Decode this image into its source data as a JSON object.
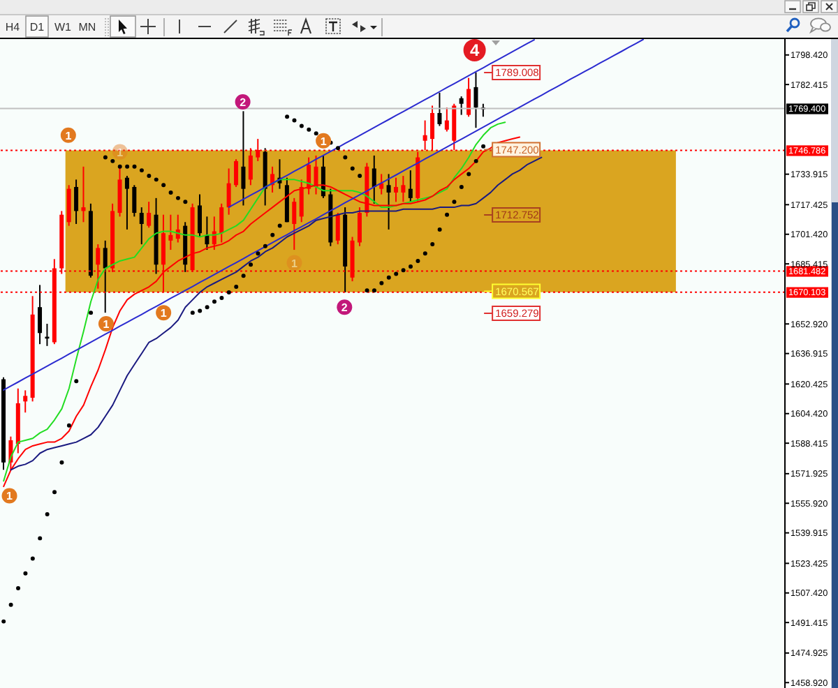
{
  "chart_data": {
    "type": "candlestick",
    "categories": [
      null,
      null,
      null,
      null,
      null,
      null,
      null,
      null,
      null,
      null,
      null,
      null,
      null,
      null,
      null,
      null,
      null,
      null,
      null,
      null,
      null,
      null,
      null,
      null,
      null,
      null,
      null,
      null,
      null,
      null,
      null,
      null,
      null,
      null,
      null,
      null,
      null,
      null,
      null,
      null,
      null,
      null,
      null,
      null,
      null,
      null,
      null,
      null,
      null,
      null,
      null,
      null,
      null,
      null,
      null,
      null,
      null,
      null,
      null,
      null,
      null,
      null,
      null,
      null,
      null,
      null,
      null,
      null,
      null,
      null,
      null,
      null,
      null,
      null,
      null,
      null,
      null,
      null,
      null,
      null,
      null,
      null,
      null,
      null,
      null,
      null,
      null,
      null,
      null,
      null,
      null,
      null,
      null,
      null,
      null,
      null,
      null,
      null,
      null,
      null,
      null,
      null,
      null,
      null,
      null,
      null,
      null,
      null
    ],
    "ohlc": [
      [
        1623,
        1624,
        1574,
        1578
      ],
      [
        1578,
        1592,
        1574,
        1590
      ],
      [
        1588,
        1618,
        1583,
        1610
      ],
      [
        1611,
        1617,
        1605,
        1614
      ],
      [
        1613,
        1668,
        1611,
        1658
      ],
      [
        1662,
        1674,
        1642,
        1648
      ],
      [
        1646,
        1653,
        1641,
        1645
      ],
      [
        1643,
        1688,
        1642,
        1683
      ],
      [
        1683,
        1714,
        1680,
        1712
      ],
      [
        1708,
        1728,
        1706,
        1726
      ],
      [
        1727,
        1731,
        1707,
        1714
      ],
      [
        1714,
        1738,
        1708,
        1716
      ],
      [
        1714,
        1718,
        1678,
        1679
      ],
      [
        1685,
        1696,
        1672,
        1694
      ],
      [
        1694,
        1698,
        1659,
        1683
      ],
      [
        1683,
        1718,
        1681,
        1714
      ],
      [
        1713,
        1738,
        1711,
        1731
      ],
      [
        1732,
        1733,
        1704,
        1726
      ],
      [
        1727,
        1728,
        1711,
        1713
      ],
      [
        1713,
        1716,
        1696,
        1707
      ],
      [
        1706,
        1719,
        1705,
        1713
      ],
      [
        1712,
        1721,
        1680,
        1685
      ],
      [
        1685,
        1712,
        1670,
        1702
      ],
      [
        1698,
        1712,
        1693,
        1701
      ],
      [
        1699,
        1712,
        1697,
        1704
      ],
      [
        1706,
        1708,
        1681,
        1685
      ],
      [
        1682,
        1718,
        1681,
        1716
      ],
      [
        1717,
        1723,
        1700,
        1702
      ],
      [
        1701,
        1711,
        1693,
        1696
      ],
      [
        1696,
        1711,
        1693,
        1703
      ],
      [
        1702,
        1718,
        1697,
        1716
      ],
      [
        1716,
        1737,
        1712,
        1729
      ],
      [
        1728,
        1742,
        1727,
        1741
      ],
      [
        1738,
        1768,
        1717,
        1726
      ],
      [
        1731,
        1748,
        1728,
        1744
      ],
      [
        1743,
        1753,
        1741,
        1747
      ],
      [
        1746,
        1748,
        1717,
        1726
      ],
      [
        1728,
        1738,
        1724,
        1734
      ],
      [
        1732,
        1742,
        1726,
        1729
      ],
      [
        1728,
        1732,
        1708,
        1708
      ],
      [
        1707,
        1721,
        1693,
        1719
      ],
      [
        1711,
        1731,
        1708,
        1727
      ],
      [
        1726,
        1743,
        1723,
        1739
      ],
      [
        1727,
        1744,
        1723,
        1738
      ],
      [
        1738,
        1744,
        1721,
        1722
      ],
      [
        1723,
        1726,
        1695,
        1697
      ],
      [
        1698,
        1713,
        1696,
        1712
      ],
      [
        1712,
        1716,
        1670,
        1684
      ],
      [
        1678,
        1700,
        1676,
        1698
      ],
      [
        1697,
        1716,
        1695,
        1713
      ],
      [
        1713,
        1740,
        1711,
        1738
      ],
      [
        1737,
        1744,
        1718,
        1727
      ],
      [
        1726,
        1734,
        1723,
        1729
      ],
      [
        1728,
        1734,
        1704,
        1724
      ],
      [
        1724,
        1732,
        1719,
        1727
      ],
      [
        1724,
        1733,
        1719,
        1728
      ],
      [
        1726,
        1736,
        1719,
        1721
      ],
      [
        1721,
        1746,
        1719,
        1743
      ],
      [
        1752,
        1763,
        1747,
        1755
      ],
      [
        1753,
        1771,
        1747,
        1767
      ],
      [
        1767,
        1778,
        1760,
        1761
      ],
      [
        1758,
        1770,
        1757,
        1763
      ],
      [
        1752,
        1772,
        1747,
        1771
      ],
      [
        1775,
        1776,
        1766,
        1772
      ],
      [
        1766,
        1786,
        1765,
        1780
      ],
      [
        1781,
        1789,
        1759,
        1770
      ],
      [
        1770,
        1772,
        1765,
        1769
      ],
      null,
      null,
      null,
      null,
      null,
      null,
      null,
      null,
      null,
      null,
      null,
      null,
      null,
      null,
      null,
      null,
      null,
      null,
      null,
      null,
      null,
      null,
      null,
      null,
      null,
      null,
      null,
      null,
      null,
      null,
      null,
      null,
      null,
      null,
      null,
      null,
      null,
      null,
      null,
      null,
      null
    ],
    "colors": [
      "#000000",
      "#ff0000",
      "#ff0000",
      "#ff0000",
      "#ff0000",
      "#000000",
      "#000000",
      "#ff0000",
      "#ff0000",
      "#ff0000",
      "#000000",
      "#ff0000",
      "#000000",
      "#ff0000",
      "#000000",
      "#ff0000",
      "#ff0000",
      "#000000",
      "#000000",
      "#000000",
      "#ff0000",
      "#000000",
      "#ff0000",
      "#ff0000",
      "#ff0000",
      "#000000",
      "#ff0000",
      "#000000",
      "#000000",
      "#ff0000",
      "#ff0000",
      "#ff0000",
      "#ff0000",
      "#000000",
      "#ff0000",
      "#ff0000",
      "#000000",
      "#ff0000",
      "#000000",
      "#000000",
      "#ff0000",
      "#ff0000",
      "#ff0000",
      "#ff0000",
      "#000000",
      "#000000",
      "#ff0000",
      "#000000",
      "#ff0000",
      "#ff0000",
      "#ff0000",
      "#000000",
      "#ff0000",
      "#000000",
      "#ff0000",
      "#ff0000",
      "#000000",
      "#ff0000",
      "#ff0000",
      "#ff0000",
      "#000000",
      "#ff0000",
      "#ff0000",
      "#000000",
      "#ff0000",
      "#000000",
      "#000000",
      null,
      null,
      null,
      null,
      null,
      null,
      null,
      null,
      null,
      null,
      null,
      null,
      null,
      null,
      null,
      null,
      null,
      null,
      null,
      null,
      null,
      null,
      null,
      null,
      null,
      null,
      null,
      null,
      null,
      null,
      null,
      null,
      null,
      null,
      null,
      null,
      null,
      null,
      null,
      null,
      null
    ],
    "series": [
      {
        "type": "line",
        "color": "#22dd22",
        "values": [
          1568,
          1581,
          1589,
          1590,
          1591,
          1594,
          1596,
          1601,
          1607,
          1618,
          1634,
          1649,
          1665,
          1677,
          1683,
          1685,
          1687,
          1688,
          1689,
          1694,
          1699,
          1702,
          1703,
          1703,
          1702,
          1701,
          1701,
          1700,
          1701,
          1701,
          1702,
          1704,
          1706,
          1709,
          1715,
          1721,
          1727,
          1729,
          1731,
          1731,
          1731,
          1730,
          1729,
          1727,
          1725,
          1725,
          1725,
          1725,
          1725,
          1724,
          1722,
          1719,
          1716,
          1716,
          1717,
          1718,
          1719,
          1720,
          1721,
          1722,
          1724,
          1726,
          1732,
          1737,
          1743,
          1750,
          1755,
          1759,
          1761,
          1762,
          null,
          null,
          null,
          null,
          null,
          null,
          null,
          null,
          null,
          null,
          null,
          null,
          null,
          null,
          null,
          null,
          null,
          null,
          null,
          null,
          null,
          null,
          null,
          null,
          null,
          null,
          null,
          null,
          null,
          null,
          null,
          null,
          null,
          null,
          null,
          null,
          null,
          null
        ]
      },
      {
        "type": "line",
        "color": "#ff0000",
        "values": [
          1565,
          1574,
          1580,
          1585,
          1587,
          1588,
          1589,
          1589,
          1591,
          1595,
          1603,
          1609,
          1619,
          1628,
          1639,
          1651,
          1660,
          1666,
          1669,
          1671,
          1673,
          1676,
          1681,
          1684,
          1687,
          1689,
          1691,
          1692,
          1694,
          1695,
          1696,
          1698,
          1701,
          1703,
          1707,
          1710,
          1713,
          1716,
          1719,
          1722,
          1725,
          1726,
          1727,
          1728,
          1728,
          1727,
          1725,
          1723,
          1721,
          1719,
          1718,
          1717,
          1717,
          1717,
          1717,
          1718,
          1718,
          1719,
          1720,
          1722,
          1725,
          1727,
          1731,
          1734,
          1737,
          1741,
          1746,
          1748,
          1751,
          1752,
          1753,
          1754,
          null,
          null,
          null,
          null,
          null,
          null,
          null,
          null,
          null,
          null,
          null,
          null,
          null,
          null,
          null,
          null,
          null,
          null,
          null,
          null,
          null,
          null,
          null,
          null,
          null,
          null,
          null,
          null,
          null,
          null,
          null,
          null,
          null,
          null,
          null,
          null
        ]
      },
      {
        "type": "line",
        "color": "#1a1a80",
        "values": [
          null,
          1574,
          1576,
          1577,
          1579,
          1583,
          1585,
          1586,
          1587,
          1588,
          1589,
          1591,
          1593,
          1597,
          1603,
          1609,
          1617,
          1625,
          1631,
          1637,
          1643,
          1645,
          1648,
          1651,
          1655,
          1662,
          1666,
          1670,
          1673,
          1675,
          1677,
          1679,
          1681,
          1684,
          1687,
          1689,
          1692,
          1694,
          1697,
          1700,
          1702,
          1704,
          1706,
          1709,
          1710,
          1711,
          1712,
          1713,
          1713,
          1714,
          1714,
          1714,
          1714,
          1714,
          1714,
          1715,
          1715,
          1715,
          1715,
          1715,
          1716,
          1716,
          1716,
          1717,
          1717,
          1718,
          1721,
          1724,
          1728,
          1731,
          1734,
          1736,
          1739,
          1741,
          1743,
          null,
          null,
          null,
          null,
          null,
          null,
          null,
          null,
          null,
          null,
          null,
          null,
          null,
          null,
          null,
          null,
          null,
          null,
          null,
          null,
          null,
          null,
          null,
          null,
          null,
          null,
          null,
          null,
          null,
          null,
          null,
          null,
          null
        ]
      },
      {
        "type": "line",
        "color": "#2b2bd0",
        "values": [
          1617.2,
          1619.4,
          1621.5,
          1623.7,
          1625.8,
          1628.0,
          1630.1,
          1632.3,
          1634.4,
          1636.6,
          1638.7,
          1640.9,
          1643.1,
          1645.2,
          1647.4,
          1649.5,
          1651.7,
          1653.8,
          1656.0,
          1658.1,
          1660.3,
          1662.4,
          1664.6,
          1666.8,
          1668.9,
          1671.1,
          1673.2,
          1675.4,
          1677.5,
          1679.7,
          1681.8,
          1684.0,
          1686.1,
          1688.3,
          1690.5,
          1692.6,
          1694.8,
          1696.9,
          1699.1,
          1701.2,
          1703.4,
          1705.5,
          1707.7,
          1709.8,
          1712.0,
          1714.2,
          1716.3,
          1718.5,
          1720.6,
          1722.8,
          1724.9,
          1727.1,
          1729.2,
          1731.4,
          1733.5,
          1735.7,
          1737.9,
          1740.0,
          1742.2,
          1744.3,
          1746.5,
          1748.6,
          1750.8,
          1752.9,
          1755.1,
          1757.2,
          1759.4,
          1761.6,
          1763.7,
          1765.9,
          1768.0,
          1770.2,
          1772.3,
          1774.5,
          1776.6,
          1778.8,
          1780.9,
          1783.1,
          1785.3,
          1787.4,
          1789.6,
          1791.7,
          1793.9,
          1796.0,
          1798.2,
          1800.3,
          1802.5,
          1804.6,
          1806.8,
          null,
          null,
          null,
          null,
          null,
          null,
          null,
          null,
          null,
          null,
          null,
          null,
          null,
          null,
          null,
          null,
          null,
          null,
          null
        ]
      },
      {
        "type": "line",
        "color": "#2b2bd0",
        "values": [
          null,
          null,
          null,
          null,
          null,
          null,
          null,
          null,
          null,
          null,
          null,
          null,
          null,
          null,
          null,
          null,
          null,
          null,
          null,
          null,
          null,
          null,
          null,
          null,
          null,
          null,
          null,
          null,
          null,
          null,
          null,
          1716.1,
          1718.3,
          1720.4,
          1722.6,
          1724.7,
          1726.9,
          1729.0,
          1731.2,
          1733.3,
          1735.5,
          1737.6,
          1739.8,
          1742.0,
          1744.1,
          1746.3,
          1748.4,
          1750.6,
          1752.7,
          1754.9,
          1757.0,
          1759.2,
          1761.4,
          1763.5,
          1765.7,
          1767.8,
          1770.0,
          1772.1,
          1774.3,
          1776.4,
          1778.6,
          1780.8,
          1782.9,
          1785.1,
          1787.2,
          1789.4,
          1791.5,
          1793.7,
          1795.8,
          1798.0,
          1800.2,
          1802.3,
          1804.5,
          1806.6,
          null,
          null,
          null,
          null,
          null,
          null,
          null,
          null,
          null,
          null,
          null,
          null,
          null,
          null,
          null,
          null,
          null,
          null,
          null,
          null,
          null,
          null,
          null,
          null,
          null,
          null,
          null,
          null,
          null,
          null,
          null,
          null,
          null,
          null
        ]
      },
      {
        "type": "scatter",
        "color": "#000000",
        "marker": "circle",
        "values": [
          1492,
          1501,
          1510,
          1518,
          1526,
          1537,
          1550,
          1562,
          1578,
          1598,
          1622,
          null,
          1659,
          null,
          1743,
          1741,
          1738,
          1738,
          1738,
          1736,
          1733,
          1731,
          1728,
          1724,
          1721,
          1719,
          1659,
          1660,
          1662,
          1665,
          1667,
          1670,
          1673,
          1679,
          1685,
          1691,
          1695,
          1701,
          1706,
          1765,
          1763,
          1760,
          1758,
          1756,
          null,
          1751,
          1748,
          1743,
          1737,
          1733,
          1671,
          1671,
          1675,
          1678,
          1680,
          1682,
          1684,
          1687,
          1691,
          1696,
          1704,
          1712,
          1719,
          1727,
          1734,
          1741,
          1749,
          null,
          null,
          null,
          null,
          null,
          null,
          null,
          null,
          null,
          null,
          null,
          null,
          null,
          null,
          null,
          null,
          null,
          null,
          null,
          null,
          null,
          null,
          null,
          null,
          null,
          null,
          null,
          null,
          null,
          null,
          null,
          null,
          null,
          null,
          null,
          null,
          null,
          null,
          null,
          null,
          null
        ]
      }
    ],
    "ylim": [
      1456,
      1807
    ],
    "yticks": [
      {
        "value": 1798.42,
        "label": "1798.420"
      },
      1782.415,
      1733.915,
      1717.425,
      {
        "value": 1701.42,
        "label": "1701.420"
      },
      1685.415,
      {
        "value": 1652.92,
        "label": "1652.920"
      },
      1636.915,
      1620.425,
      {
        "value": 1604.42,
        "label": "1604.420"
      },
      1588.415,
      1571.925,
      {
        "value": 1555.92,
        "label": "1555.920"
      },
      1539.915,
      1523.425,
      {
        "value": 1507.42,
        "label": "1507.420"
      },
      1491.415,
      1474.925,
      {
        "value": 1458.92,
        "label": "1458.920"
      }
    ],
    "tick_labels": "y",
    "ref_lines": [
      {
        "axis": "y",
        "value": 1769.4,
        "label": "1769.400",
        "color": "#c0c0c0",
        "line_style": "solid"
      },
      {
        "axis": "y",
        "value": 1746.786,
        "label": "1746.786",
        "color": "#ff0000",
        "line_style": "dotted"
      },
      {
        "axis": "y",
        "value": 1681.482,
        "label": "1681.482",
        "color": "#ff0000",
        "line_style": "dotted"
      },
      {
        "axis": "y",
        "value": 1670.103,
        "label": "1670.103",
        "color": "#ff0000",
        "line_style": "dotted"
      }
    ],
    "bands": [
      {
        "axis": "y",
        "from": 1670.103,
        "to": 1746.786,
        "color": "#daa520"
      }
    ],
    "annotations": [
      "H4",
      "D1",
      "W1",
      "MN",
      {
        "text": "1",
        "y": 1755
      },
      {
        "text": "1",
        "y": 1746
      },
      {
        "text": "1",
        "y": 1752
      },
      {
        "text": "1",
        "y": 1686
      },
      {
        "text": "1",
        "y": 1653
      },
      {
        "text": "1",
        "y": 1659
      },
      {
        "text": "1",
        "y": 1560
      },
      {
        "text": "2",
        "y": 1773
      },
      {
        "text": "2",
        "y": 1662
      },
      {
        "text": "4",
        "y": 1801
      },
      "1789.008",
      {
        "text": "1747.200",
        "y": 1747.2
      },
      "1712.752",
      {
        "text": "1670.567",
        "y": 1670.567
      },
      "1659.279"
    ]
  }
}
